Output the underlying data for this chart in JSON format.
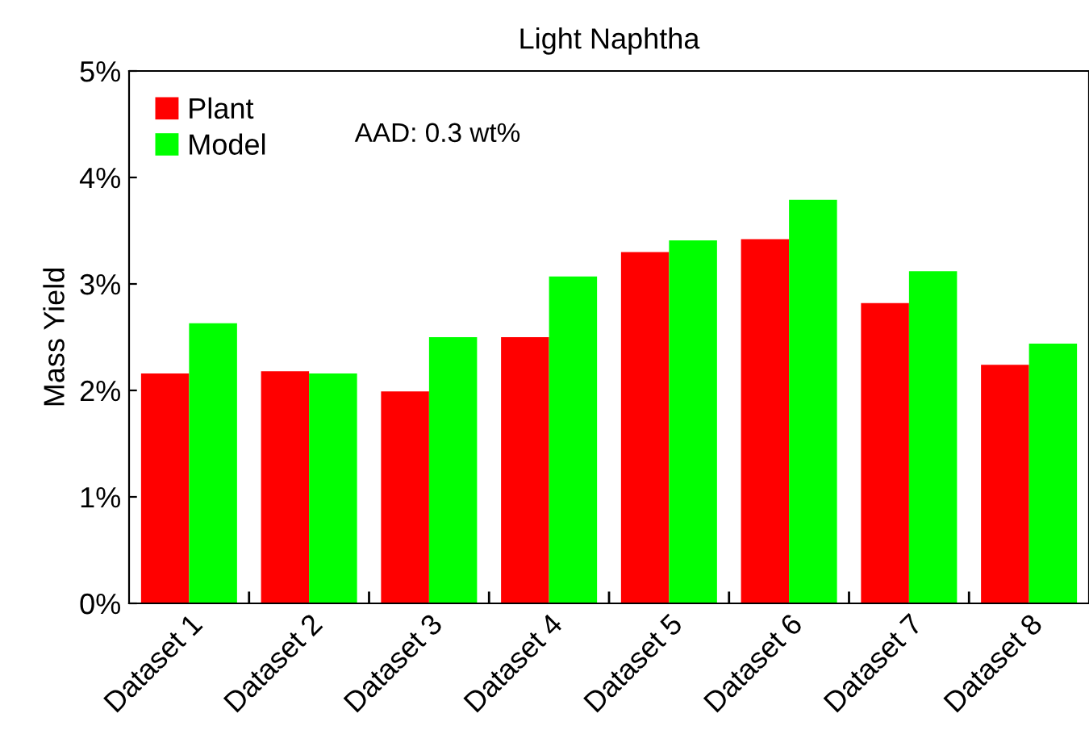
{
  "chart_data": {
    "type": "bar",
    "title": "Light Naphtha",
    "ylabel": "Mass Yield",
    "categories": [
      "Dataset 1",
      "Dataset 2",
      "Dataset 3",
      "Dataset 4",
      "Dataset 5",
      "Dataset 6",
      "Dataset 7",
      "Dataset 8"
    ],
    "series": [
      {
        "name": "Plant",
        "color": "#ff0000",
        "values": [
          2.16,
          2.18,
          1.99,
          2.5,
          3.3,
          3.42,
          2.82,
          2.24
        ]
      },
      {
        "name": "Model",
        "color": "#00ff00",
        "values": [
          2.63,
          2.16,
          2.5,
          3.07,
          3.41,
          3.79,
          3.12,
          2.44
        ]
      }
    ],
    "ylim": [
      0,
      5
    ],
    "yticks": [
      {
        "value": 0,
        "label": "0%"
      },
      {
        "value": 1,
        "label": "1%"
      },
      {
        "value": 2,
        "label": "2%"
      },
      {
        "value": 3,
        "label": "3%"
      },
      {
        "value": 4,
        "label": "4%"
      },
      {
        "value": 5,
        "label": "5%"
      }
    ],
    "annotations": [
      "AAD: 0.3 wt%"
    ],
    "legend": "top left",
    "grid": false
  }
}
